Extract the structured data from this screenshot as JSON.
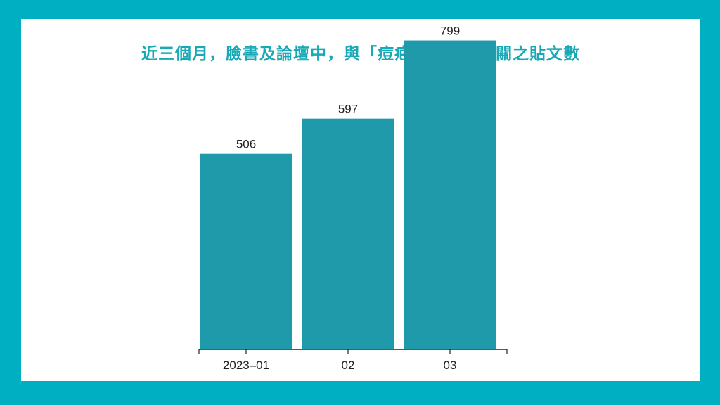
{
  "colors": {
    "frame": "#00b0c2",
    "panel": "#ffffff",
    "title": "#17a9b5",
    "bar": "#1e9aab",
    "axis": "#222222",
    "text": "#1f1f1f"
  },
  "chart_data": {
    "type": "bar",
    "title": "近三個月，臉書及論壇中，與「痘疤」關鍵字相關之貼文數",
    "categories": [
      "2023–01",
      "02",
      "03"
    ],
    "values": [
      506,
      597,
      799
    ],
    "data_labels": [
      "506",
      "597",
      "799"
    ],
    "xlabel": "",
    "ylabel": "",
    "ylim": [
      0,
      800
    ],
    "grid": false,
    "legend": "none"
  }
}
